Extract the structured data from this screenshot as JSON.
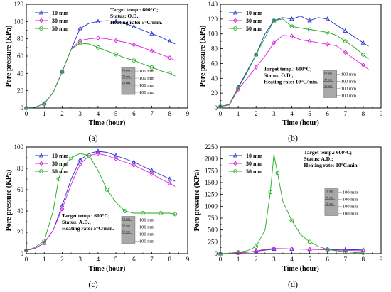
{
  "chart_data": [
    {
      "type": "line",
      "caption": "(a)",
      "xlabel": "Time (hour)",
      "ylabel": "Pore pressure (KPa)",
      "xlim": [
        0,
        9
      ],
      "ylim": [
        0,
        120
      ],
      "xticks": [
        "0",
        "1",
        "2",
        "3",
        "4",
        "5",
        "6",
        "7",
        "8",
        "9"
      ],
      "yticks": [
        "0",
        "20",
        "40",
        "60",
        "80",
        "100",
        "120"
      ],
      "legend_position": "top-left",
      "annotation": [
        "Target temp.: 600°C;",
        "Status: O.D.;",
        "Heating rate: 5°C/min."
      ],
      "inset_labels": [
        "10 mm",
        "30 mm",
        "50 mm",
        "100 mm",
        "100 mm",
        "100 mm",
        "100 mm"
      ],
      "series": [
        {
          "name": "10 mm",
          "color": "#2233cc",
          "marker": "triangle",
          "x": [
            0,
            0.5,
            1,
            1.5,
            2,
            2.5,
            3,
            3.5,
            4,
            4.5,
            5,
            5.5,
            6,
            6.5,
            7,
            7.5,
            8,
            8.3
          ],
          "y": [
            0,
            1,
            5,
            18,
            42,
            68,
            92,
            98,
            100,
            101,
            100,
            98,
            94,
            90,
            86,
            82,
            77,
            74
          ]
        },
        {
          "name": "30 mm",
          "color": "#dd22dd",
          "marker": "diamond",
          "x": [
            0,
            0.5,
            1,
            1.5,
            2,
            2.5,
            3,
            3.5,
            4,
            4.5,
            5,
            5.5,
            6,
            6.5,
            7,
            7.5,
            8,
            8.3
          ],
          "y": [
            0,
            1,
            5,
            18,
            42,
            68,
            78,
            80,
            81,
            80,
            78,
            76,
            73,
            70,
            66,
            62,
            58,
            55
          ]
        },
        {
          "name": "50 mm",
          "color": "#22aa22",
          "marker": "circle",
          "x": [
            0,
            0.5,
            1,
            1.5,
            2,
            2.5,
            3,
            3.5,
            4,
            4.5,
            5,
            5.5,
            6,
            6.5,
            7,
            7.5,
            8,
            8.3
          ],
          "y": [
            0,
            1,
            5,
            18,
            42,
            68,
            75,
            74,
            70,
            66,
            62,
            58,
            55,
            51,
            47,
            43,
            40,
            37
          ]
        }
      ]
    },
    {
      "type": "line",
      "caption": "(b)",
      "xlabel": "Time (hour)",
      "ylabel": "Pore pressure (KPa)",
      "xlim": [
        0,
        9
      ],
      "ylim": [
        0,
        140
      ],
      "xticks": [
        "0",
        "1",
        "2",
        "3",
        "4",
        "5",
        "6",
        "7",
        "8",
        "9"
      ],
      "yticks": [
        "0",
        "20",
        "40",
        "60",
        "80",
        "100",
        "120",
        "140"
      ],
      "legend_position": "top-left",
      "annotation": [
        "Target temp.: 600°C;",
        "Status: O.D.;",
        "Heating rate: 10°C/min."
      ],
      "inset_labels": [
        "10 mm",
        "30 mm",
        "50 mm",
        "100 mm",
        "100 mm",
        "100 mm",
        "100 mm"
      ],
      "series": [
        {
          "name": "10 mm",
          "color": "#2233cc",
          "marker": "triangle",
          "x": [
            0,
            0.5,
            1,
            1.5,
            2,
            2.5,
            3,
            3.5,
            4,
            4.5,
            5,
            5.5,
            6,
            6.5,
            7,
            7.5,
            8,
            8.3
          ],
          "y": [
            2,
            5,
            28,
            50,
            72,
            100,
            118,
            122,
            120,
            124,
            118,
            122,
            120,
            112,
            104,
            96,
            88,
            83
          ]
        },
        {
          "name": "30 mm",
          "color": "#dd22dd",
          "marker": "diamond",
          "x": [
            0,
            0.5,
            1,
            1.5,
            2,
            2.5,
            3,
            3.5,
            4,
            4.5,
            5,
            5.5,
            6,
            6.5,
            7,
            7.5,
            8,
            8.3
          ],
          "y": [
            2,
            4,
            25,
            40,
            55,
            70,
            88,
            98,
            97,
            92,
            90,
            88,
            86,
            84,
            75,
            66,
            58,
            52
          ]
        },
        {
          "name": "50 mm",
          "color": "#22aa22",
          "marker": "circle",
          "x": [
            0,
            0.5,
            1,
            1.5,
            2,
            2.5,
            3,
            3.5,
            4,
            4.5,
            5,
            5.5,
            6,
            6.5,
            7,
            7.5,
            8,
            8.3
          ],
          "y": [
            2,
            5,
            27,
            48,
            72,
            95,
            118,
            120,
            110,
            108,
            106,
            104,
            102,
            98,
            90,
            82,
            72,
            66
          ]
        }
      ]
    },
    {
      "type": "line",
      "caption": "(c)",
      "xlabel": "Time (hour)",
      "ylabel": "Pore pressure (KPa)",
      "xlim": [
        0,
        9
      ],
      "ylim": [
        0,
        100
      ],
      "xticks": [
        "0",
        "1",
        "2",
        "3",
        "4",
        "5",
        "6",
        "7",
        "8",
        "9"
      ],
      "yticks": [
        "0",
        "20",
        "40",
        "60",
        "80",
        "100"
      ],
      "legend_position": "top-left",
      "annotation": [
        "Target temp.: 600°C;",
        "Status: A.D.;",
        "Heating rate: 5°C/min."
      ],
      "inset_labels": [
        "10 mm",
        "30 mm",
        "50 mm",
        "100 mm",
        "100 mm",
        "100 mm",
        "100 mm"
      ],
      "series": [
        {
          "name": "10 mm",
          "color": "#2233cc",
          "marker": "triangle",
          "x": [
            0,
            0.5,
            1,
            1.5,
            2,
            2.5,
            3,
            3.5,
            4,
            4.5,
            5,
            5.5,
            6,
            6.5,
            7,
            7.5,
            8,
            8.3
          ],
          "y": [
            3,
            5,
            10,
            22,
            45,
            70,
            88,
            94,
            96,
            95,
            92,
            89,
            86,
            82,
            78,
            74,
            70,
            68
          ]
        },
        {
          "name": "30 mm",
          "color": "#dd22dd",
          "marker": "diamond",
          "x": [
            0,
            0.5,
            1,
            1.5,
            2,
            2.5,
            3,
            3.5,
            4,
            4.5,
            5,
            5.5,
            6,
            6.5,
            7,
            7.5,
            8,
            8.3
          ],
          "y": [
            3,
            5,
            10,
            22,
            42,
            65,
            84,
            92,
            94,
            92,
            89,
            86,
            83,
            79,
            75,
            70,
            66,
            63
          ]
        },
        {
          "name": "50 mm",
          "color": "#22aa22",
          "marker": "circle",
          "x": [
            0,
            0.5,
            1,
            1.5,
            1.8,
            2,
            2.5,
            3,
            3.5,
            4,
            4.5,
            5,
            5.5,
            6,
            6.5,
            7,
            7.5,
            8,
            8.3
          ],
          "y": [
            3,
            6,
            12,
            40,
            70,
            80,
            90,
            94,
            92,
            78,
            60,
            48,
            40,
            38,
            38,
            38,
            38,
            38,
            37
          ]
        }
      ]
    },
    {
      "type": "line",
      "caption": "(d)",
      "xlabel": "Time (hour)",
      "ylabel": "Pore pressure (KPa)",
      "xlim": [
        0,
        9
      ],
      "ylim": [
        0,
        2250
      ],
      "xticks": [
        "0",
        "1",
        "2",
        "3",
        "4",
        "5",
        "6",
        "7",
        "8",
        "9"
      ],
      "yticks": [
        "0",
        "250",
        "500",
        "750",
        "1000",
        "1250",
        "1500",
        "1750",
        "2000",
        "2250"
      ],
      "legend_position": "top-left",
      "annotation": [
        "Target temp.: 600°C;",
        "Status: A.D.;",
        "Heating rate: 10°C/min."
      ],
      "inset_labels": [
        "10 mm",
        "30 mm",
        "50 mm",
        "100 mm",
        "100 mm",
        "100 mm",
        "100 mm"
      ],
      "series": [
        {
          "name": "10 mm",
          "color": "#2233cc",
          "marker": "triangle",
          "x": [
            0,
            0.5,
            1,
            1.5,
            2,
            2.5,
            3,
            3.5,
            4,
            4.5,
            5,
            5.5,
            6,
            6.5,
            7,
            7.5,
            8
          ],
          "y": [
            0,
            5,
            15,
            30,
            50,
            75,
            95,
            100,
            98,
            96,
            94,
            92,
            90,
            88,
            85,
            82,
            80
          ]
        },
        {
          "name": "30 mm",
          "color": "#dd22dd",
          "marker": "diamond",
          "x": [
            0,
            0.5,
            1,
            1.5,
            2,
            2.5,
            3,
            3.5,
            4,
            4.5,
            5,
            5.5,
            6,
            6.5,
            7,
            7.5,
            8
          ],
          "y": [
            0,
            5,
            15,
            30,
            55,
            90,
            110,
            105,
            100,
            95,
            90,
            85,
            80,
            75,
            70,
            65,
            60
          ]
        },
        {
          "name": "50 mm",
          "color": "#22aa22",
          "marker": "circle",
          "x": [
            0,
            0.5,
            1,
            1.5,
            2,
            2.5,
            2.8,
            3,
            3.2,
            3.5,
            4,
            4.5,
            5,
            5.5,
            6,
            6.5,
            7,
            7.5,
            8
          ],
          "y": [
            0,
            10,
            30,
            60,
            150,
            500,
            1300,
            2100,
            1700,
            1100,
            700,
            400,
            250,
            150,
            90,
            60,
            40,
            25,
            15
          ]
        }
      ]
    }
  ]
}
